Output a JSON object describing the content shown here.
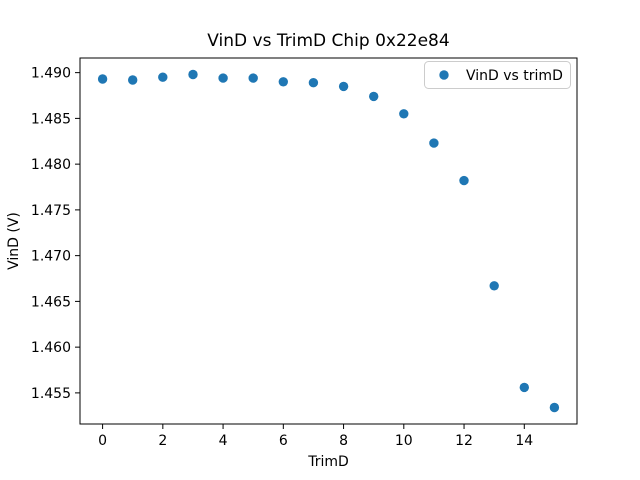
{
  "chart_data": {
    "type": "scatter",
    "title": "VinD vs TrimD Chip 0x22e84",
    "xlabel": "TrimD",
    "ylabel": "VinD (V)",
    "series": [
      {
        "name": "VinD vs trimD",
        "x": [
          0,
          1,
          2,
          3,
          4,
          5,
          6,
          7,
          8,
          9,
          10,
          11,
          12,
          13,
          14,
          15
        ],
        "y": [
          1.4893,
          1.4892,
          1.4895,
          1.4898,
          1.4894,
          1.4894,
          1.489,
          1.4889,
          1.4885,
          1.4874,
          1.4855,
          1.4823,
          1.4782,
          1.4667,
          1.4556,
          1.4534
        ]
      }
    ],
    "xlim": [
      -0.75,
      15.75
    ],
    "ylim": [
      1.4516,
      1.4916
    ],
    "xticks": [
      0,
      2,
      4,
      6,
      8,
      10,
      12,
      14
    ],
    "xtick_labels": [
      "0",
      "2",
      "4",
      "6",
      "8",
      "10",
      "12",
      "14"
    ],
    "yticks": [
      1.455,
      1.46,
      1.465,
      1.47,
      1.475,
      1.48,
      1.485,
      1.49
    ],
    "ytick_labels": [
      "1.455",
      "1.460",
      "1.465",
      "1.470",
      "1.475",
      "1.480",
      "1.485",
      "1.490"
    ],
    "grid": false,
    "marker_color": "#1f77b4",
    "axes_color": "#000000",
    "legend": {
      "position": "upper right",
      "entries": [
        "VinD vs trimD"
      ],
      "border_color": "#cccccc"
    }
  }
}
